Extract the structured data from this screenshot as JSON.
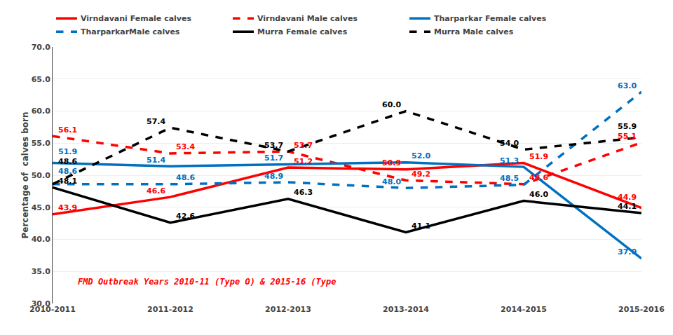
{
  "chart_data": {
    "type": "line",
    "ylabel": "Percentage of  calves born",
    "categories": [
      "2010-2011",
      "2011-2012",
      "2012-2013",
      "2013-2014",
      "2014-2015",
      "2015-2016"
    ],
    "series": [
      {
        "name": "Virndavani Female calves",
        "color": "#ff0000",
        "line_style": "solid",
        "values": [
          43.9,
          46.6,
          51.2,
          50.9,
          51.9,
          44.9
        ],
        "value_labels": [
          "43.9",
          "46.6",
          "51.2",
          "50.9",
          "51.9",
          "44.9"
        ]
      },
      {
        "name": "Virndavani Male calves",
        "color": "#ff0000",
        "line_style": "dashed",
        "values": [
          56.1,
          53.4,
          53.7,
          49.2,
          48.6,
          55.1
        ],
        "value_labels": [
          "56.1",
          "53.4",
          "53.7",
          "49.2",
          "48.6",
          "55.1"
        ]
      },
      {
        "name": "Tharparkar Female calves",
        "color": "#0070c0",
        "line_style": "solid",
        "values": [
          51.9,
          51.4,
          51.7,
          52.0,
          51.3,
          37.0
        ],
        "value_labels": [
          "51.9",
          "51.4",
          "51.7",
          "52.0",
          "51.3",
          "37.0"
        ]
      },
      {
        "name": "TharparkarMale calves",
        "color": "#0070c0",
        "line_style": "dashed",
        "values": [
          48.6,
          48.6,
          48.9,
          48.0,
          48.5,
          63.0
        ],
        "value_labels": [
          "48.6",
          "48.6",
          "48.9",
          "48.0",
          "48.5",
          "63.0"
        ]
      },
      {
        "name": "Murra Female calves",
        "color": "#000000",
        "line_style": "solid",
        "values": [
          48.1,
          42.6,
          46.3,
          41.1,
          46.0,
          44.1
        ],
        "value_labels": [
          "48.1",
          "42.6",
          "46.3",
          "41.1",
          "46.0",
          "44.1"
        ]
      },
      {
        "name": "Murra Male calves",
        "color": "#000000",
        "line_style": "dashed",
        "values": [
          48.6,
          57.4,
          53.7,
          60.0,
          54.0,
          55.9
        ],
        "value_labels": [
          "48.6",
          "57.4",
          "53.7",
          "60.0",
          "54.0",
          "55.9"
        ]
      }
    ],
    "ylim": [
      30.0,
      70.0
    ],
    "yticks": [
      {
        "value": 30,
        "label": "30.0"
      },
      {
        "value": 35,
        "label": "35.0"
      },
      {
        "value": 40,
        "label": "40.0"
      },
      {
        "value": 45,
        "label": "45.0"
      },
      {
        "value": 50,
        "label": "50.0"
      },
      {
        "value": 55,
        "label": "55.0"
      },
      {
        "value": 60,
        "label": "60.0"
      },
      {
        "value": 65,
        "label": "65.0"
      },
      {
        "value": 70,
        "label": "70.0"
      }
    ],
    "annotations": [
      {
        "text": "FMD Outbreak Years 2010-11 (Type O) & 2015-16 (Type",
        "color": "#ff0000"
      }
    ],
    "grid": true,
    "legend": "upper left",
    "data_labels": true
  }
}
